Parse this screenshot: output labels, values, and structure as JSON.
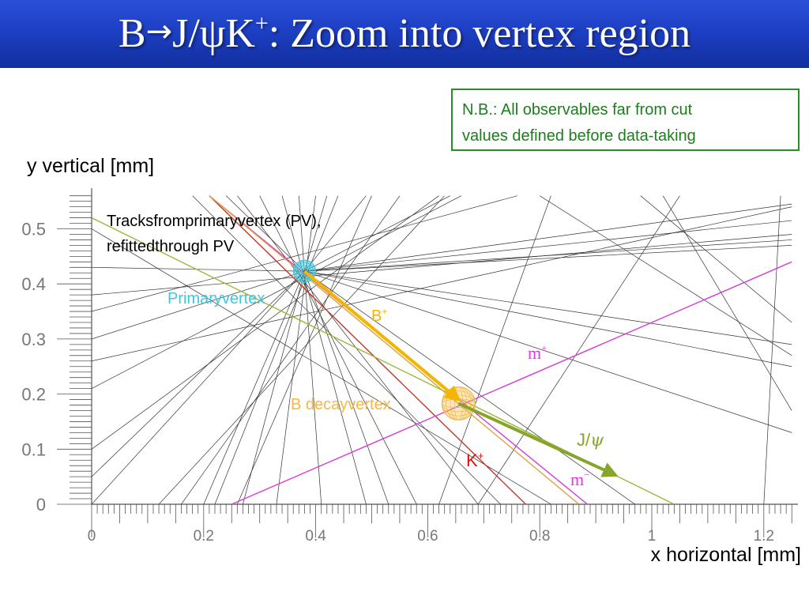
{
  "slide": {
    "title": {
      "prefix": "B",
      "arrow": "→",
      "mid": "J/ψK",
      "sup": "+",
      "suffix": ": Zoom into vertex region"
    },
    "note": {
      "line1": "N.B.: All observables far from cut",
      "line2": "values defined before data-taking"
    }
  },
  "chart_data": {
    "type": "scatter",
    "xlabel": "x horizontal [mm]",
    "ylabel": "y vertical [mm]",
    "xlim": [
      0,
      1.25
    ],
    "ylim": [
      0,
      0.56
    ],
    "x_ticks": [
      "0",
      "0.2",
      "0.4",
      "0.6",
      "0.8",
      "1",
      "1.2"
    ],
    "y_ticks": [
      "0",
      "0.1",
      "0.2",
      "0.3",
      "0.4",
      "0.5"
    ],
    "primary_vertex": {
      "x": 0.38,
      "y": 0.423,
      "label": "Primaryvertex",
      "color": "#3ec8e0"
    },
    "b_vertex": {
      "x": 0.655,
      "y": 0.183,
      "label": "B decayvertex",
      "color": "#f3b745"
    },
    "pv_tracks_label": [
      "Tracksfromprimaryvertex (PV),",
      "refittedthrough PV"
    ],
    "arrows": [
      {
        "name": "B+",
        "sup": "+",
        "base": "B",
        "from": [
          0.38,
          0.423
        ],
        "to": [
          0.655,
          0.19
        ],
        "color": "#f5b400"
      },
      {
        "name": "J/psi",
        "base": "J/",
        "psi": "ψ",
        "from": [
          0.655,
          0.183
        ],
        "to": [
          0.935,
          0.053
        ],
        "color": "#86a52a"
      }
    ],
    "daughter_tracks": [
      {
        "name": "K+",
        "base": "K",
        "sup": "+",
        "from": [
          0.21,
          0.56
        ],
        "to": [
          0.775,
          0
        ],
        "color": "#c0392b"
      },
      {
        "name": "mu+",
        "base": "m",
        "sup": "+",
        "from": [
          0.25,
          0
        ],
        "to": [
          1.25,
          0.44
        ],
        "color": "#d63fd6"
      },
      {
        "name": "mu-",
        "base": "m",
        "sup": "−",
        "from": [
          0.21,
          0.56
        ],
        "to": [
          0.885,
          0
        ],
        "color": "#d63fd6"
      },
      {
        "name": "B-line",
        "from": [
          0.21,
          0.56
        ],
        "to": [
          0.87,
          0
        ],
        "color": "#d9a53a"
      },
      {
        "name": "J/psi-line",
        "from": [
          0,
          0.52
        ],
        "to": [
          1.04,
          0
        ],
        "color": "#9ab83a"
      }
    ],
    "pv_tracks": [
      [
        [
          0.3,
          0.56
        ],
        [
          0.58,
          0
        ]
      ],
      [
        [
          0.34,
          0.56
        ],
        [
          0.49,
          0
        ]
      ],
      [
        [
          0.37,
          0.56
        ],
        [
          0.41,
          0
        ]
      ],
      [
        [
          0.4,
          0.56
        ],
        [
          0.33,
          0
        ]
      ],
      [
        [
          0.44,
          0.56
        ],
        [
          0.22,
          0
        ]
      ],
      [
        [
          0.5,
          0.56
        ],
        [
          0.26,
          0
        ]
      ],
      [
        [
          0.55,
          0.56
        ],
        [
          0.16,
          0
        ]
      ],
      [
        [
          0.63,
          0.56
        ],
        [
          0.12,
          0
        ]
      ],
      [
        [
          0.26,
          0.56
        ],
        [
          0.69,
          0
        ]
      ],
      [
        [
          0.18,
          0.56
        ],
        [
          0.73,
          0
        ]
      ],
      [
        [
          0,
          0.5
        ],
        [
          0.82,
          0
        ]
      ],
      [
        [
          0,
          0.35
        ],
        [
          0.76,
          0.56
        ]
      ],
      [
        [
          0,
          0.21
        ],
        [
          0.66,
          0.56
        ]
      ],
      [
        [
          0,
          0.1
        ],
        [
          0.62,
          0.56
        ]
      ],
      [
        [
          0,
          0.26
        ],
        [
          1.25,
          0.54
        ]
      ],
      [
        [
          0,
          0.38
        ],
        [
          1.25,
          0.49
        ]
      ],
      [
        [
          0.38,
          0.423
        ],
        [
          1.25,
          0.545
        ]
      ],
      [
        [
          0.38,
          0.423
        ],
        [
          1.25,
          0.515
        ]
      ],
      [
        [
          0.38,
          0.423
        ],
        [
          1.25,
          0.48
        ]
      ],
      [
        [
          0.38,
          0.423
        ],
        [
          1.25,
          0.47
        ]
      ],
      [
        [
          0.38,
          0.423
        ],
        [
          1.25,
          0.25
        ]
      ],
      [
        [
          0.38,
          0.423
        ],
        [
          1.25,
          0.13
        ]
      ],
      [
        [
          0.38,
          0.423
        ],
        [
          0.97,
          0
        ]
      ],
      [
        [
          0.38,
          0.423
        ],
        [
          0.53,
          0
        ]
      ],
      [
        [
          0.38,
          0.423
        ],
        [
          0.27,
          0
        ]
      ],
      [
        [
          0.38,
          0.423
        ],
        [
          0.24,
          0.56
        ]
      ],
      [
        [
          0.38,
          0.423
        ],
        [
          0.42,
          0.56
        ]
      ],
      [
        [
          0.38,
          0.423
        ],
        [
          0.49,
          0.56
        ]
      ],
      [
        [
          0.38,
          0.423
        ],
        [
          0.0,
          0.3
        ]
      ],
      [
        [
          0.38,
          0.423
        ],
        [
          0.0,
          0.43
        ]
      ],
      [
        [
          0.38,
          0.423
        ],
        [
          0.0,
          0.05
        ]
      ],
      [
        [
          0.38,
          0.423
        ],
        [
          0.0,
          0.0
        ]
      ],
      [
        [
          0.38,
          0.423
        ],
        [
          0.64,
          0.56
        ]
      ],
      [
        [
          0.38,
          0.423
        ],
        [
          0.2,
          0
        ]
      ],
      [
        [
          0.38,
          0.423
        ],
        [
          1.25,
          0.29
        ]
      ],
      [
        [
          0.69,
          0
        ],
        [
          1.05,
          0.56
        ]
      ],
      [
        [
          0.8,
          0.56
        ],
        [
          1.25,
          0.27
        ]
      ],
      [
        [
          0.98,
          0.56
        ],
        [
          1.25,
          0.33
        ]
      ],
      [
        [
          1.02,
          0.56
        ],
        [
          1.25,
          0.17
        ]
      ],
      [
        [
          1.23,
          0.56
        ],
        [
          1.2,
          0
        ]
      ],
      [
        [
          0.82,
          0.56
        ],
        [
          0.62,
          0
        ]
      ]
    ],
    "colors": {
      "axis": "#555555",
      "track": "#333333"
    }
  }
}
